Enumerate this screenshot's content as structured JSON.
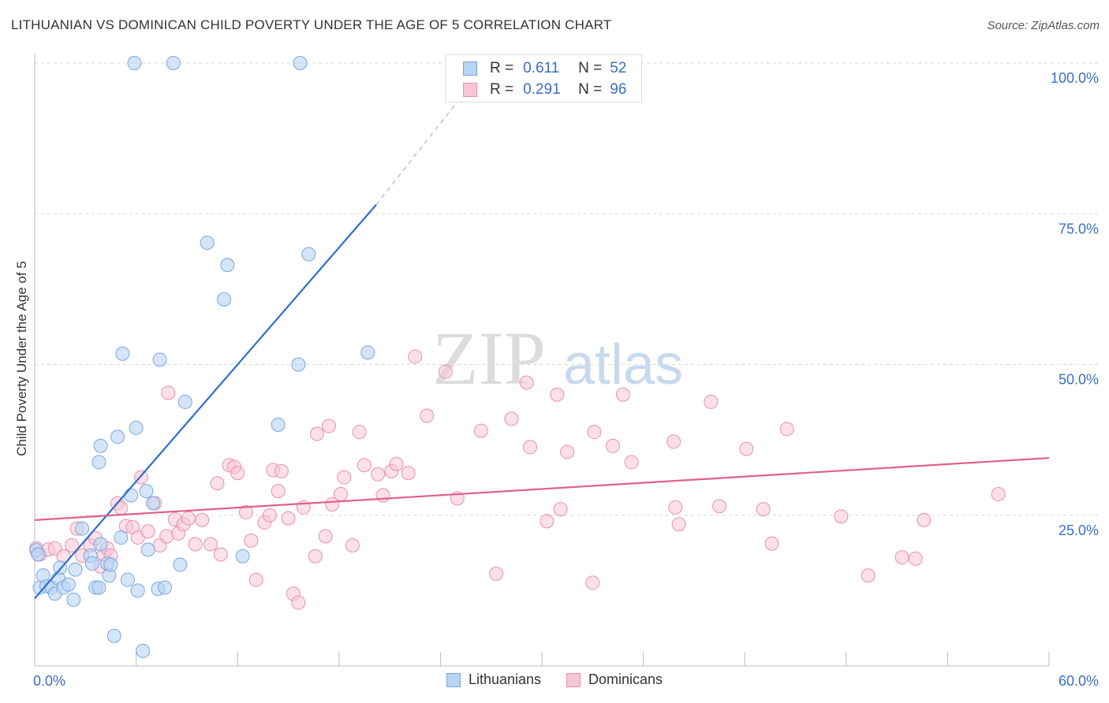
{
  "title": "LITHUANIAN VS DOMINICAN CHILD POVERTY UNDER THE AGE OF 5 CORRELATION CHART",
  "source": "Source: ZipAtlas.com",
  "watermark": {
    "zip": "ZIP",
    "atlas": "atlas"
  },
  "colors": {
    "lithuanian_fill": "#b9d3f3",
    "lithuanian_stroke": "#7aa7e0",
    "lithuanian_line": "#2e6fd0",
    "dominican_fill": "#f7c6d6",
    "dominican_stroke": "#e890b0",
    "dominican_line": "#e0608c",
    "axis_value": "#3a6fc4",
    "grid": "#d8d8d8"
  },
  "legend": {
    "rows": [
      {
        "r_label": "R =",
        "r_value": "0.611",
        "n_label": "N =",
        "n_value": "52"
      },
      {
        "r_label": "R =",
        "r_value": "0.291",
        "n_label": "N =",
        "n_value": "96"
      }
    ],
    "series_names": [
      "Lithuanians",
      "Dominicans"
    ]
  },
  "chart_data": {
    "type": "scatter",
    "title": "LITHUANIAN VS DOMINICAN CHILD POVERTY UNDER THE AGE OF 5 CORRELATION CHART",
    "xlabel": "",
    "ylabel": "Child Poverty Under the Age of 5",
    "xlim": [
      0,
      60
    ],
    "ylim": [
      0,
      100
    ],
    "x_ticks": [
      "0.0%",
      "60.0%"
    ],
    "y_ticks": [
      "25.0%",
      "50.0%",
      "75.0%",
      "100.0%"
    ],
    "y_tick_values": [
      25,
      50,
      75,
      100
    ],
    "grid": true,
    "legend_position": "top-center",
    "series": [
      {
        "name": "Lithuanians",
        "r": 0.611,
        "n": 52,
        "trend": {
          "x": [
            0,
            20.2
          ],
          "y": [
            11.2,
            76.5
          ],
          "dashed_to": [
            26.3,
            98.2
          ]
        },
        "points": [
          [
            0.1,
            19.2
          ],
          [
            0.2,
            18.5
          ],
          [
            0.3,
            13.0
          ],
          [
            0.5,
            15.0
          ],
          [
            0.7,
            13.2
          ],
          [
            1.0,
            13.0
          ],
          [
            1.2,
            12.0
          ],
          [
            1.4,
            14.5
          ],
          [
            1.5,
            16.3
          ],
          [
            1.7,
            13.0
          ],
          [
            2.0,
            13.5
          ],
          [
            2.3,
            11.0
          ],
          [
            2.4,
            16.0
          ],
          [
            2.8,
            22.8
          ],
          [
            3.3,
            18.3
          ],
          [
            3.6,
            13.0
          ],
          [
            3.4,
            17.0
          ],
          [
            3.9,
            20.2
          ],
          [
            3.8,
            13.0
          ],
          [
            3.8,
            33.8
          ],
          [
            3.9,
            36.5
          ],
          [
            4.3,
            17.0
          ],
          [
            4.4,
            15.0
          ],
          [
            4.5,
            16.8
          ],
          [
            4.7,
            5.0
          ],
          [
            4.9,
            38.0
          ],
          [
            5.1,
            21.3
          ],
          [
            5.2,
            51.8
          ],
          [
            5.5,
            14.3
          ],
          [
            5.7,
            28.3
          ],
          [
            6.0,
            39.5
          ],
          [
            6.1,
            12.5
          ],
          [
            6.4,
            2.5
          ],
          [
            6.6,
            29.0
          ],
          [
            6.7,
            19.3
          ],
          [
            7.0,
            27.0
          ],
          [
            7.3,
            12.8
          ],
          [
            7.4,
            50.8
          ],
          [
            7.7,
            13.0
          ],
          [
            8.6,
            16.8
          ],
          [
            8.9,
            43.8
          ],
          [
            5.9,
            100.0
          ],
          [
            8.2,
            100.0
          ],
          [
            11.2,
            60.8
          ],
          [
            10.2,
            70.2
          ],
          [
            11.4,
            66.5
          ],
          [
            12.3,
            18.2
          ],
          [
            14.4,
            40.0
          ],
          [
            15.6,
            50.0
          ],
          [
            16.2,
            68.3
          ],
          [
            15.7,
            100.0
          ],
          [
            19.7,
            52.0
          ]
        ]
      },
      {
        "name": "Dominicans",
        "r": 0.291,
        "n": 96,
        "trend": {
          "x": [
            0,
            60
          ],
          "y": [
            24.2,
            34.5
          ]
        },
        "points": [
          [
            0.1,
            19.5
          ],
          [
            0.3,
            18.5
          ],
          [
            0.8,
            19.3
          ],
          [
            1.2,
            19.5
          ],
          [
            1.7,
            18.2
          ],
          [
            2.2,
            20.0
          ],
          [
            2.5,
            22.8
          ],
          [
            2.8,
            18.3
          ],
          [
            3.3,
            20.0
          ],
          [
            3.6,
            21.2
          ],
          [
            3.9,
            16.5
          ],
          [
            4.1,
            18.5
          ],
          [
            4.3,
            19.5
          ],
          [
            4.5,
            18.3
          ],
          [
            4.9,
            27.0
          ],
          [
            5.1,
            26.2
          ],
          [
            5.4,
            23.2
          ],
          [
            5.8,
            23.0
          ],
          [
            6.1,
            21.3
          ],
          [
            6.3,
            31.3
          ],
          [
            6.7,
            22.3
          ],
          [
            7.1,
            27.0
          ],
          [
            7.4,
            20.0
          ],
          [
            7.8,
            21.5
          ],
          [
            7.9,
            45.3
          ],
          [
            8.3,
            24.3
          ],
          [
            8.5,
            22.0
          ],
          [
            8.8,
            23.5
          ],
          [
            9.1,
            24.5
          ],
          [
            9.5,
            20.2
          ],
          [
            9.9,
            24.2
          ],
          [
            10.4,
            20.2
          ],
          [
            10.8,
            30.3
          ],
          [
            11.0,
            18.5
          ],
          [
            11.5,
            33.3
          ],
          [
            11.8,
            33.0
          ],
          [
            12.0,
            32.0
          ],
          [
            12.5,
            25.5
          ],
          [
            12.8,
            20.8
          ],
          [
            13.1,
            14.3
          ],
          [
            13.6,
            23.8
          ],
          [
            13.9,
            25.0
          ],
          [
            14.1,
            32.5
          ],
          [
            14.4,
            29.0
          ],
          [
            14.6,
            32.3
          ],
          [
            15.0,
            24.5
          ],
          [
            15.3,
            12.0
          ],
          [
            15.6,
            10.5
          ],
          [
            15.9,
            26.3
          ],
          [
            16.6,
            18.2
          ],
          [
            16.7,
            38.5
          ],
          [
            17.2,
            21.5
          ],
          [
            17.4,
            39.8
          ],
          [
            17.6,
            26.8
          ],
          [
            18.1,
            28.5
          ],
          [
            18.3,
            31.3
          ],
          [
            18.8,
            20.0
          ],
          [
            19.2,
            38.8
          ],
          [
            19.5,
            33.3
          ],
          [
            20.3,
            31.8
          ],
          [
            20.6,
            28.3
          ],
          [
            21.1,
            32.3
          ],
          [
            21.4,
            33.5
          ],
          [
            22.1,
            32.0
          ],
          [
            22.5,
            51.3
          ],
          [
            23.2,
            41.5
          ],
          [
            24.3,
            48.8
          ],
          [
            25.0,
            27.8
          ],
          [
            26.4,
            39.0
          ],
          [
            27.3,
            15.3
          ],
          [
            28.2,
            41.0
          ],
          [
            29.1,
            47.0
          ],
          [
            29.3,
            36.3
          ],
          [
            30.3,
            24.0
          ],
          [
            30.9,
            45.0
          ],
          [
            31.1,
            26.0
          ],
          [
            31.5,
            35.5
          ],
          [
            33.0,
            13.8
          ],
          [
            33.1,
            38.8
          ],
          [
            34.2,
            36.5
          ],
          [
            34.8,
            45.0
          ],
          [
            35.3,
            33.8
          ],
          [
            37.8,
            37.2
          ],
          [
            37.9,
            26.3
          ],
          [
            38.1,
            23.5
          ],
          [
            40.0,
            43.8
          ],
          [
            40.5,
            26.5
          ],
          [
            42.1,
            36.0
          ],
          [
            43.1,
            26.0
          ],
          [
            43.6,
            20.3
          ],
          [
            44.5,
            39.3
          ],
          [
            47.7,
            24.8
          ],
          [
            49.3,
            15.0
          ],
          [
            51.3,
            18.0
          ],
          [
            52.1,
            17.8
          ],
          [
            52.6,
            24.2
          ],
          [
            57.0,
            28.5
          ]
        ]
      }
    ]
  }
}
